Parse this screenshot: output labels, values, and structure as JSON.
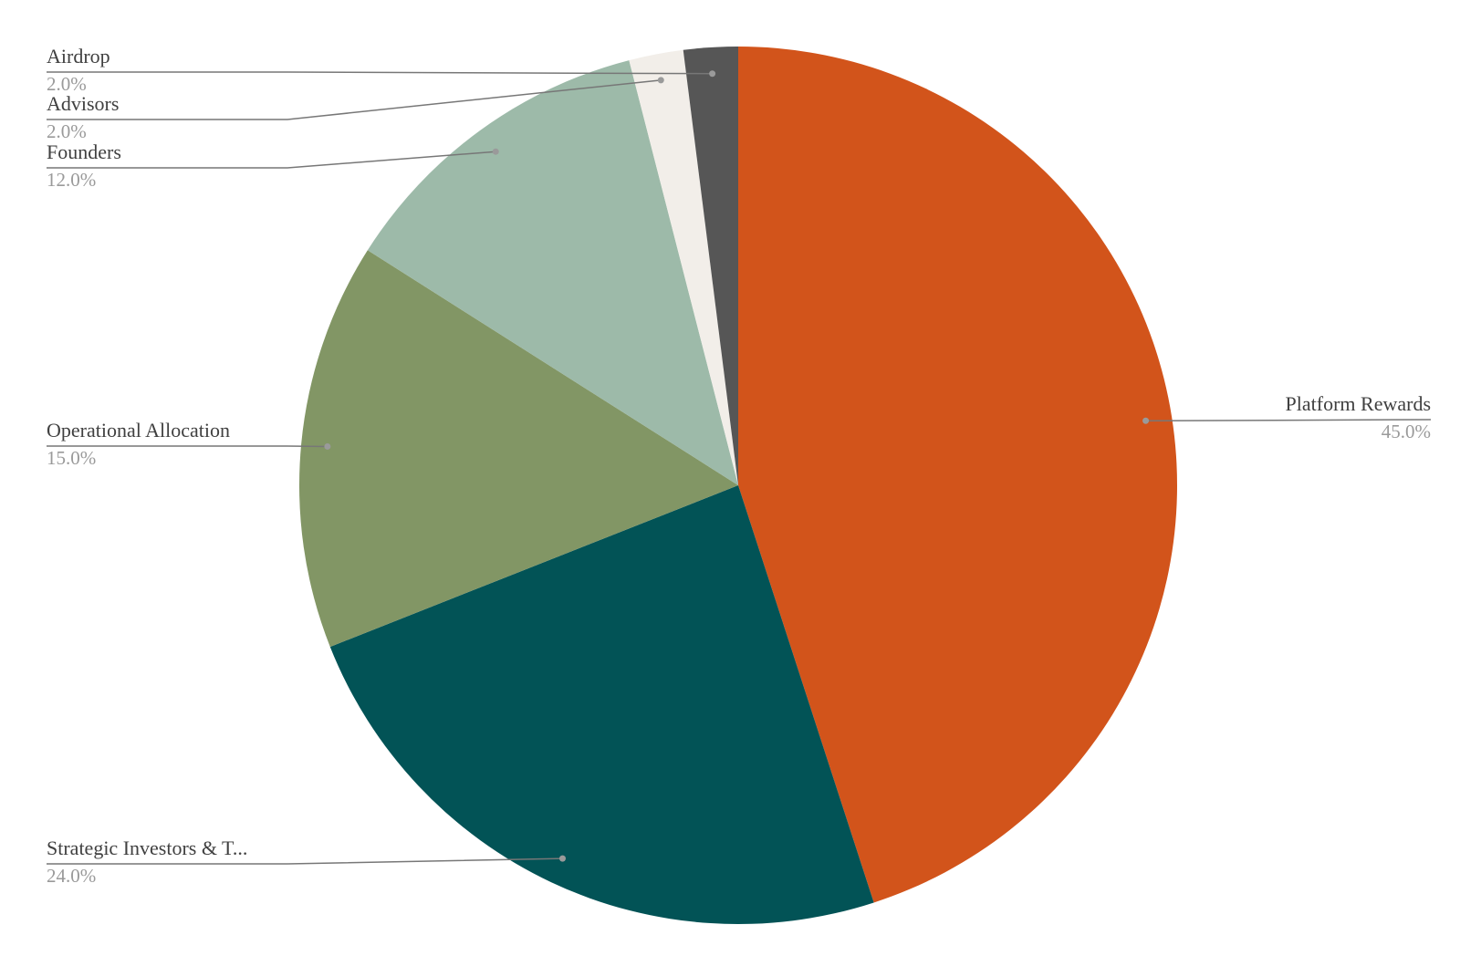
{
  "chart_data": {
    "type": "pie",
    "categories": [
      "Platform Rewards",
      "Strategic Investors & T...",
      "Operational Allocation",
      "Founders",
      "Advisors",
      "Airdrop"
    ],
    "values": [
      45,
      24,
      15,
      12,
      2,
      2
    ],
    "value_labels": [
      "45.0%",
      "24.0%",
      "15.0%",
      "12.0%",
      "2.0%",
      "2.0%"
    ],
    "colors": [
      "#d2541b",
      "#025356",
      "#829665",
      "#9dbaa9",
      "#f2eee9",
      "#565656"
    ]
  }
}
